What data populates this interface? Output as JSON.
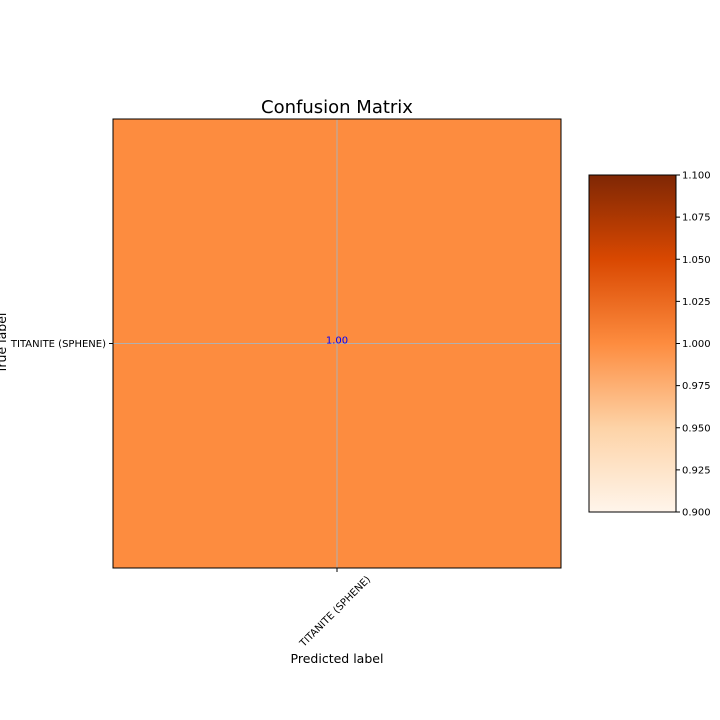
{
  "chart_data": {
    "type": "heatmap",
    "title": "Confusion Matrix",
    "xlabel": "Predicted label",
    "ylabel": "True label",
    "x_categories": [
      "TITANITE (SPHENE)"
    ],
    "y_categories": [
      "TITANITE (SPHENE)"
    ],
    "values": [
      [
        1.0
      ]
    ],
    "cell_labels": [
      [
        "1.00"
      ]
    ],
    "cell_label_color": "#0000ff",
    "cell_color": "#fd8c3f",
    "grid": true,
    "colorbar": {
      "range": [
        0.9,
        1.1
      ],
      "ticks": [
        "0.900",
        "0.925",
        "0.950",
        "0.975",
        "1.000",
        "1.025",
        "1.050",
        "1.075",
        "1.100"
      ],
      "colormap": "Oranges",
      "gradient_colors": [
        "#fff5eb",
        "#fdd3a7",
        "#fd8c3f",
        "#d94801",
        "#7f2704"
      ]
    }
  }
}
